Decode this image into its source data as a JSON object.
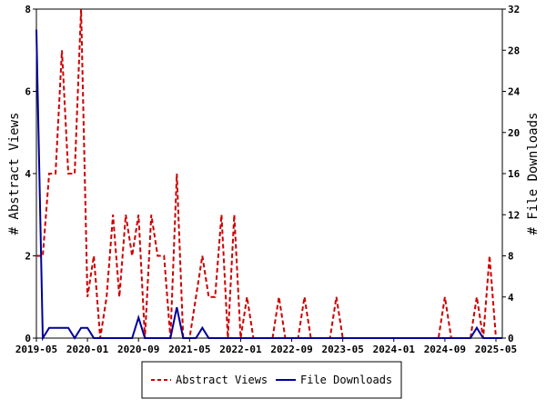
{
  "chart_data": {
    "type": "line",
    "x_dates": [
      "2019-05",
      "2019-06",
      "2019-07",
      "2019-08",
      "2019-09",
      "2019-10",
      "2019-11",
      "2019-12",
      "2020-01",
      "2020-02",
      "2020-03",
      "2020-04",
      "2020-05",
      "2020-06",
      "2020-07",
      "2020-08",
      "2020-09",
      "2020-10",
      "2020-11",
      "2020-12",
      "2021-01",
      "2021-02",
      "2021-03",
      "2021-04",
      "2021-05",
      "2021-06",
      "2021-07",
      "2021-08",
      "2021-09",
      "2021-10",
      "2021-11",
      "2021-12",
      "2022-01",
      "2022-02",
      "2022-03",
      "2022-04",
      "2022-05",
      "2022-06",
      "2022-07",
      "2022-08",
      "2022-09",
      "2022-10",
      "2022-11",
      "2022-12",
      "2023-01",
      "2023-02",
      "2023-03",
      "2023-04",
      "2023-05",
      "2023-06",
      "2023-07",
      "2023-08",
      "2023-09",
      "2023-10",
      "2023-11",
      "2023-12",
      "2024-01",
      "2024-02",
      "2024-03",
      "2024-04",
      "2024-05",
      "2024-06",
      "2024-07",
      "2024-08",
      "2024-09",
      "2024-10",
      "2024-11",
      "2024-12",
      "2025-01",
      "2025-02",
      "2025-03",
      "2025-04",
      "2025-05",
      "2025-06"
    ],
    "series": [
      {
        "name": "Abstract Views",
        "axis": "left",
        "color": "#cc0000",
        "values": [
          2,
          2,
          4,
          4,
          7,
          4,
          4,
          8,
          1,
          2,
          0,
          1,
          3,
          1,
          3,
          2,
          3,
          0,
          3,
          2,
          2,
          0,
          4,
          0,
          0,
          1,
          2,
          1,
          1,
          3,
          0,
          3,
          0,
          1,
          0,
          0,
          0,
          0,
          1,
          0,
          0,
          0,
          1,
          0,
          0,
          0,
          0,
          1,
          0,
          0,
          0,
          0,
          0,
          0,
          0,
          0,
          0,
          0,
          0,
          0,
          0,
          0,
          0,
          0,
          1,
          0,
          0,
          0,
          0,
          1,
          0,
          2,
          0,
          0
        ]
      },
      {
        "name": "File Downloads",
        "axis": "right",
        "color": "#000099",
        "values": [
          30,
          0,
          1,
          1,
          1,
          1,
          0,
          1,
          1,
          0,
          0,
          0,
          0,
          0,
          0,
          0,
          2,
          0,
          0,
          0,
          0,
          0,
          3,
          0,
          0,
          0,
          1,
          0,
          0,
          0,
          0,
          0,
          0,
          0,
          0,
          0,
          0,
          0,
          0,
          0,
          0,
          0,
          0,
          0,
          0,
          0,
          0,
          0,
          0,
          0,
          0,
          0,
          0,
          0,
          0,
          0,
          0,
          0,
          0,
          0,
          0,
          0,
          0,
          0,
          0,
          0,
          0,
          0,
          0,
          1,
          0,
          0,
          0,
          0
        ]
      }
    ],
    "x_tick_labels": [
      "2019-05",
      "2020-01",
      "2020-09",
      "2021-05",
      "2022-01",
      "2022-09",
      "2023-05",
      "2024-01",
      "2024-09",
      "2025-05"
    ],
    "y_left": {
      "label": "# Abstract Views",
      "ylim": [
        0,
        8
      ],
      "ticks": [
        0,
        2,
        4,
        6,
        8
      ]
    },
    "y_right": {
      "label": "# File Downloads",
      "ylim": [
        0,
        32
      ],
      "ticks": [
        0,
        4,
        8,
        12,
        16,
        20,
        24,
        28,
        32
      ]
    },
    "grid": false,
    "legend": {
      "placement": "bottom-center",
      "entries": [
        "Abstract Views",
        "File Downloads"
      ]
    }
  }
}
